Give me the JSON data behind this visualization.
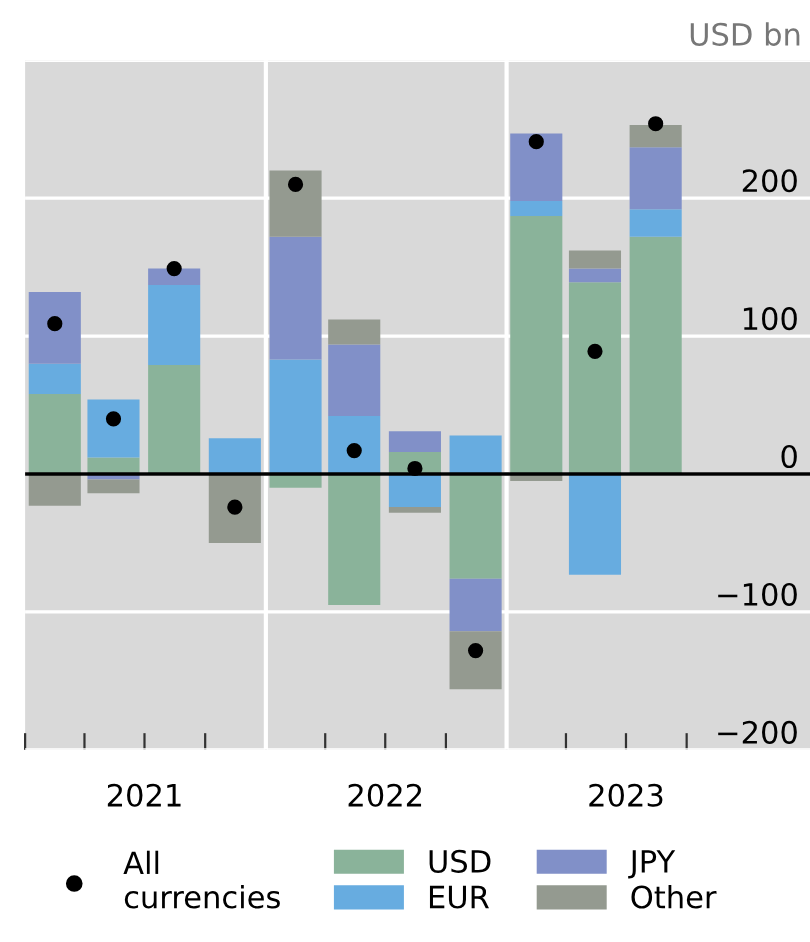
{
  "chart_data": {
    "type": "bar",
    "stacked": true,
    "ylabel": "USD bn",
    "x": [
      "2021-02-15",
      "2021-05-15",
      "2021-08-15",
      "2021-11-15",
      "2022-02-15",
      "2022-05-15",
      "2022-08-15",
      "2022-11-15",
      "2023-02-15",
      "2023-05-15",
      "2023-08-15"
    ],
    "series": [
      {
        "name": "USD",
        "color": "#8ab39a",
        "values": [
          58,
          12,
          79,
          null,
          -10,
          -95,
          16,
          -76,
          187,
          139,
          172
        ]
      },
      {
        "name": "EUR",
        "color": "#67ace0",
        "values": [
          22,
          42,
          58,
          26,
          83,
          42,
          -24,
          28,
          11,
          -73,
          20
        ]
      },
      {
        "name": "JPY",
        "color": "#8190c8",
        "values": [
          52,
          -4,
          12,
          null,
          89,
          52,
          15,
          -38,
          49,
          10,
          45
        ]
      },
      {
        "name": "Other",
        "color": "#949a90",
        "values": [
          -23,
          -10,
          null,
          -50,
          48,
          18,
          -4,
          -42,
          -5,
          13,
          16
        ]
      },
      {
        "name": "All\ncurrencies",
        "type": "scatter",
        "color": "#000000",
        "marker": "circle",
        "values": [
          109,
          40,
          149,
          -24,
          210,
          17,
          4,
          -128,
          241,
          89,
          254
        ]
      }
    ],
    "xlim": [
      "2021-01-01",
      "2024-04-05"
    ],
    "xticks": [
      {
        "value": "2021-01-01",
        "label": null
      },
      {
        "value": "2021-04-01",
        "label": null
      },
      {
        "value": "2021-07-01",
        "label": "2021"
      },
      {
        "value": "2021-10-01",
        "label": null
      },
      {
        "value": "2022-01-01",
        "label": null
      },
      {
        "value": "2022-04-01",
        "label": null
      },
      {
        "value": "2022-07-01",
        "label": "2022"
      },
      {
        "value": "2022-10-01",
        "label": null
      },
      {
        "value": "2023-01-01",
        "label": null
      },
      {
        "value": "2023-04-01",
        "label": null
      },
      {
        "value": "2023-07-01",
        "label": "2023"
      },
      {
        "value": "2023-10-01",
        "label": null
      }
    ],
    "ylim": [
      -200,
      300
    ],
    "yticks": [
      {
        "value": -200,
        "label": "−200"
      },
      {
        "value": -100,
        "label": "−100"
      },
      0,
      100,
      200,
      {
        "value": 300,
        "label": null
      }
    ],
    "grid": "y",
    "legend": "bottom",
    "ref_lines": [
      {
        "axis": "x",
        "value": "2022-01-01",
        "color": "#ffffff"
      },
      {
        "axis": "x",
        "value": "2023-01-01",
        "color": "#ffffff"
      },
      {
        "axis": "y",
        "value": 0,
        "color": "#000000"
      }
    ]
  }
}
